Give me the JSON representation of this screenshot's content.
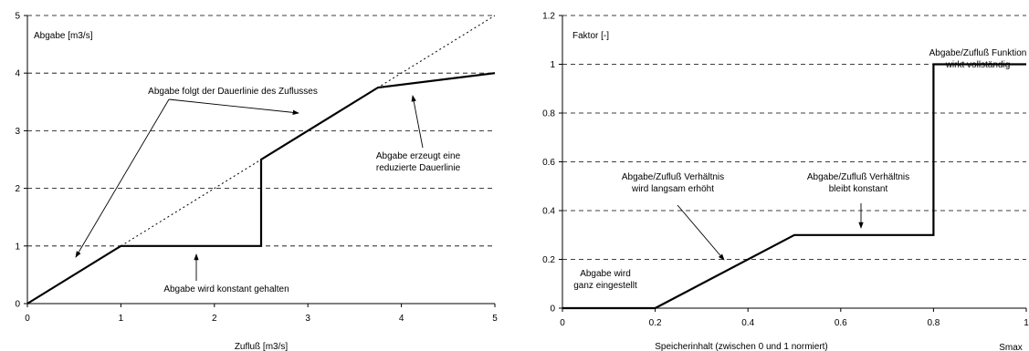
{
  "chart_data": [
    {
      "type": "line",
      "xlabel": "Zufluß [m3/s]",
      "ylabel": "Abgabe [m3/s]",
      "xlim": [
        0,
        5
      ],
      "ylim": [
        0,
        5
      ],
      "xticks": [
        "0",
        "1",
        "2",
        "3",
        "4",
        "5"
      ],
      "yticks": [
        "0",
        "1",
        "2",
        "3",
        "4",
        "5"
      ],
      "grid": "horizontal dashed",
      "series": [
        {
          "style": "solid",
          "x": [
            0,
            1,
            2.5,
            2.5,
            3.75,
            5
          ],
          "y": [
            0,
            1,
            1,
            2.5,
            3.75,
            4
          ]
        },
        {
          "style": "dotted",
          "x": [
            1,
            5
          ],
          "y": [
            1,
            5
          ]
        }
      ],
      "annotations": [
        {
          "text": "Abgabe folgt der Dauerlinie des Zuflusses",
          "lines": [
            "Abgabe folgt der Dauerlinie des Zuflusses"
          ]
        },
        {
          "text": "Abgabe erzeugt eine reduzierte Dauerlinie",
          "lines": [
            "Abgabe erzeugt eine",
            "reduzierte Dauerlinie"
          ]
        },
        {
          "text": "Abgabe wird konstant gehalten",
          "lines": [
            "Abgabe wird konstant gehalten"
          ]
        }
      ]
    },
    {
      "type": "line",
      "xlabel": "Speicherinhalt (zwischen 0 und 1 normiert)",
      "xlabel_right": "Smax",
      "ylabel": "Faktor [-]",
      "xlim": [
        0,
        1
      ],
      "ylim": [
        0,
        1.2
      ],
      "xticks": [
        "0",
        "0.2",
        "0.4",
        "0.6",
        "0.8",
        "1"
      ],
      "yticks": [
        "0",
        "0.2",
        "0.4",
        "0.6",
        "0.8",
        "1",
        "1.2"
      ],
      "grid": "horizontal dashed",
      "series": [
        {
          "style": "solid",
          "x": [
            0,
            0.2,
            0.5,
            0.8,
            0.8,
            1
          ],
          "y": [
            0,
            0,
            0.3,
            0.3,
            1,
            1
          ]
        }
      ],
      "annotations": [
        {
          "text": "Abgabe/Zufluß Funktion wirkt vollständig",
          "lines": [
            "Abgabe/Zufluß Funktion",
            "wirkt vollständig"
          ]
        },
        {
          "text": "Abgabe/Zufluß Verhältnis wird langsam erhöht",
          "lines": [
            "Abgabe/Zufluß Verhältnis",
            "wird langsam erhöht"
          ]
        },
        {
          "text": "Abgabe/Zufluß Verhältnis bleibt konstant",
          "lines": [
            "Abgabe/Zufluß Verhältnis",
            "bleibt konstant"
          ]
        },
        {
          "text": "Abgabe wird ganz eingestellt",
          "lines": [
            "Abgabe wird",
            "ganz eingestellt"
          ]
        }
      ]
    }
  ]
}
